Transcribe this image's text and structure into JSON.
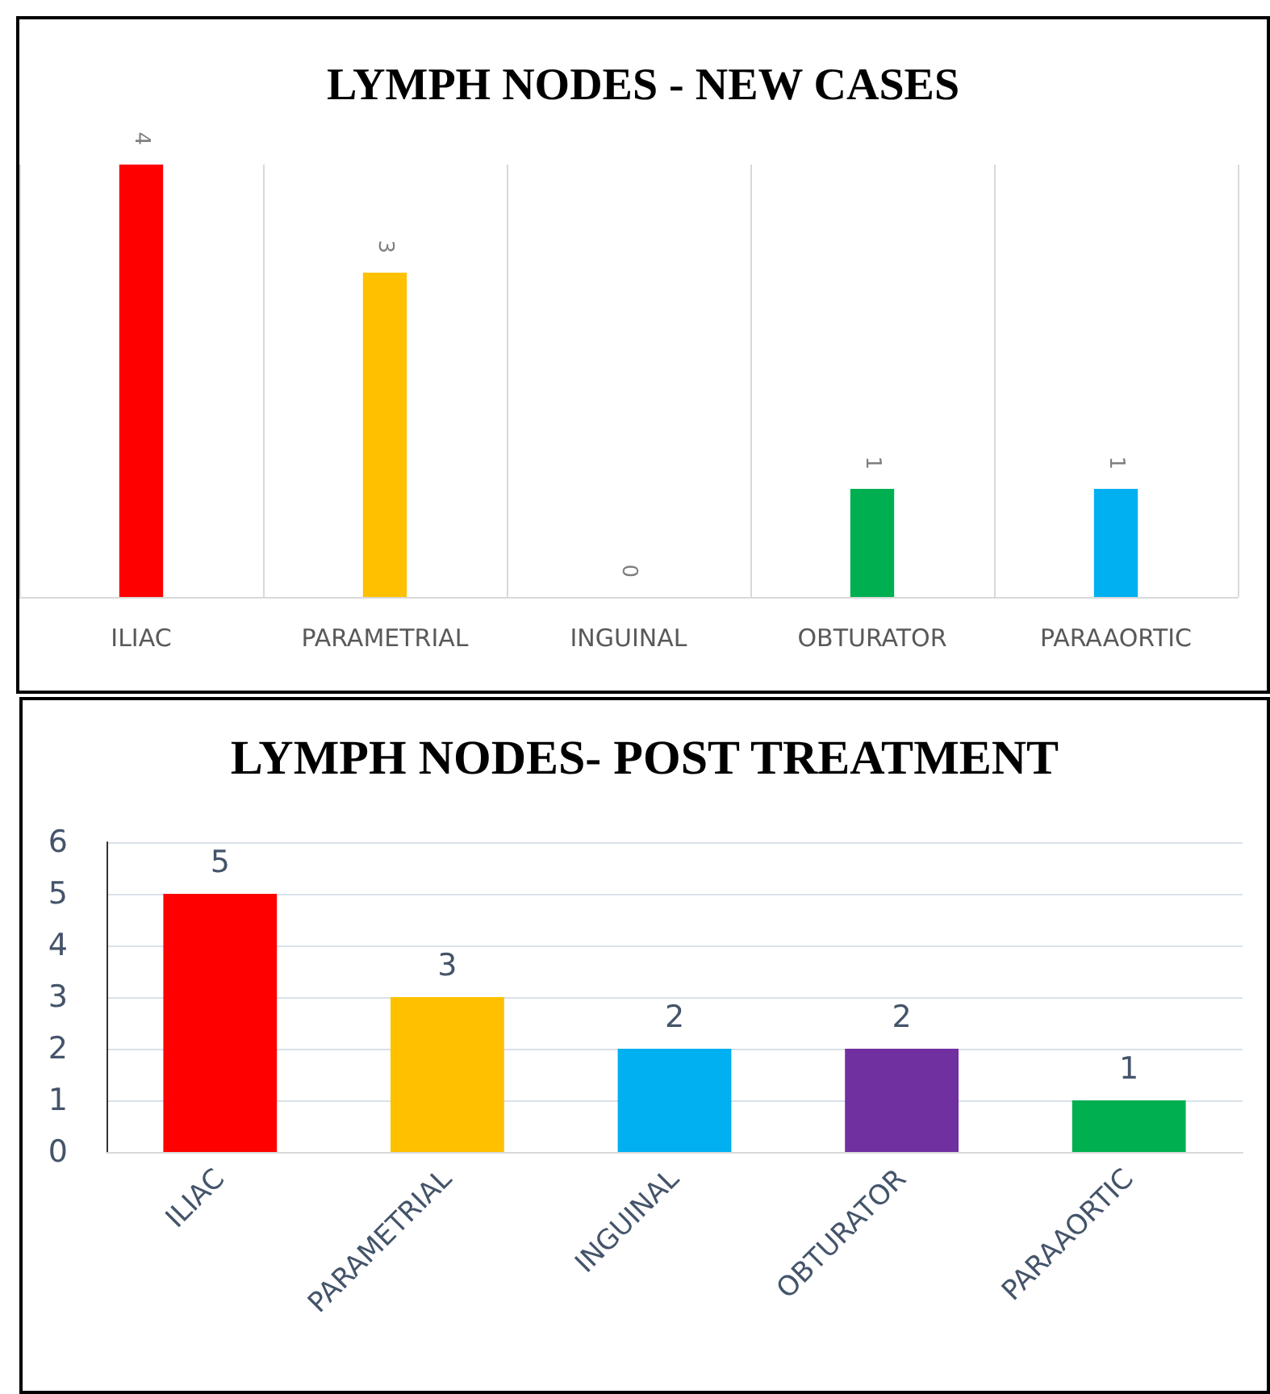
{
  "chart_data": [
    {
      "type": "bar",
      "title": "LYMPH NODES - NEW CASES",
      "categories": [
        "ILIAC",
        "PARAMETRIAL",
        "INGUINAL",
        "OBTURATOR",
        "PARAAORTIC"
      ],
      "values": [
        4,
        3,
        0,
        1,
        1
      ],
      "colors": [
        "#ff0000",
        "#ffc000",
        null,
        "#00b050",
        "#00b0f0"
      ],
      "data_labels": true,
      "tick_labels": "x",
      "grid": "x"
    },
    {
      "type": "bar",
      "title": "LYMPH NODES- POST TREATMENT",
      "categories": [
        "ILIAC",
        "PARAMETRIAL",
        "INGUINAL",
        "OBTURATOR",
        "PARAAORTIC"
      ],
      "values": [
        5,
        3,
        2,
        2,
        1
      ],
      "colors": [
        "#ff0000",
        "#ffc000",
        "#00b0f0",
        "#7030a0",
        "#00b050"
      ],
      "data_labels": true,
      "ylim": [
        0,
        6
      ],
      "yticks": [
        0,
        1,
        2,
        3,
        4,
        5,
        6
      ],
      "grid": "y"
    }
  ]
}
